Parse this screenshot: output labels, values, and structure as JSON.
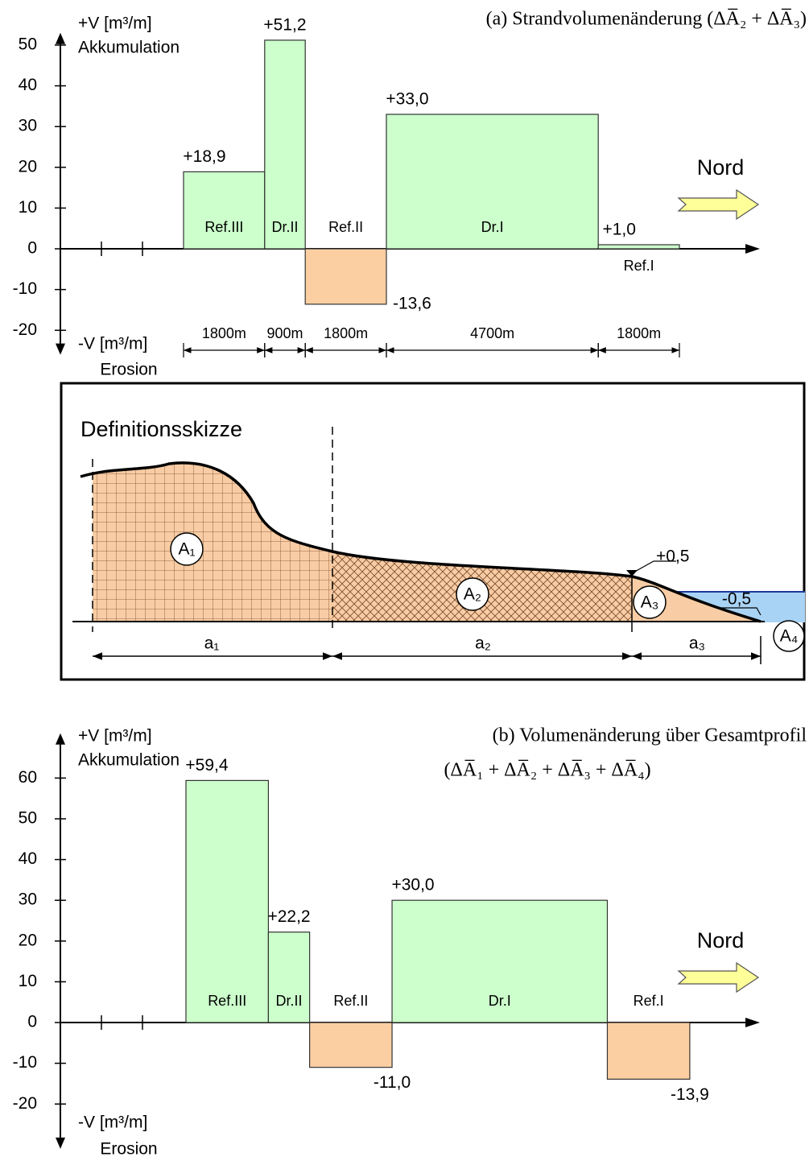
{
  "chart_data": [
    {
      "type": "bar",
      "title": "(a) Strandvolumenänderung (ΔA̅₂ + ΔA̅₃)",
      "y_label_top": [
        "+V [m³/m]",
        "Akkumulation"
      ],
      "y_label_bottom": [
        "-V [m³/m]",
        "Erosion"
      ],
      "annotation": "Nord",
      "categories": [
        "Ref.III",
        "Dr.II",
        "Ref.II",
        "Dr.I",
        "Ref.I"
      ],
      "values": [
        18.9,
        51.2,
        -13.6,
        33.0,
        1.0
      ],
      "value_labels": [
        "+18,9",
        "+51,2",
        "-13,6",
        "+33,0",
        "+1,0"
      ],
      "widths": [
        {
          "value": 1800,
          "label": "1800m"
        },
        {
          "value": 900,
          "label": "900m"
        },
        {
          "value": 1800,
          "label": "1800m"
        },
        {
          "value": 4700,
          "label": "4700m"
        },
        {
          "value": 1800,
          "label": "1800m"
        }
      ],
      "colors": {
        "positive": "#ccffcc",
        "negative": "#fbcfa2"
      },
      "ylim": [
        -26,
        53
      ],
      "yticks": [
        -20,
        -10,
        0,
        10,
        20,
        30,
        40,
        50
      ]
    },
    {
      "type": "bar",
      "title": "(b) Volumenänderung über Gesamtprofil",
      "subtitle": "(ΔA̅₁ + ΔA̅₂ + ΔA̅₃ + ΔA̅₄)",
      "y_label_top": [
        "+V [m³/m]",
        "Akkumulation"
      ],
      "y_label_bottom": [
        "-V [m³/m]",
        "Erosion"
      ],
      "annotation": "Nord",
      "categories": [
        "Ref.III",
        "Dr.II",
        "Ref.II",
        "Dr.I",
        "Ref.I"
      ],
      "values": [
        59.4,
        22.2,
        -11.0,
        30.0,
        -13.9
      ],
      "value_labels": [
        "+59,4",
        "+22,2",
        "-11,0",
        "+30,0",
        "-13,9"
      ],
      "widths": [
        1800,
        900,
        1800,
        4700,
        1800
      ],
      "colors": {
        "positive": "#ccffcc",
        "negative": "#fbcfa2"
      },
      "ylim": [
        -31,
        71
      ],
      "yticks": [
        -20,
        -10,
        0,
        10,
        20,
        30,
        40,
        50,
        60
      ]
    }
  ],
  "diagram": {
    "title": "Definitionsskizze",
    "areas": [
      "A₁",
      "A₂",
      "A₃",
      "A₄"
    ],
    "lengths": [
      "a₁",
      "a₂",
      "a₃"
    ],
    "levels": [
      "+0,5",
      "-0,5"
    ]
  }
}
